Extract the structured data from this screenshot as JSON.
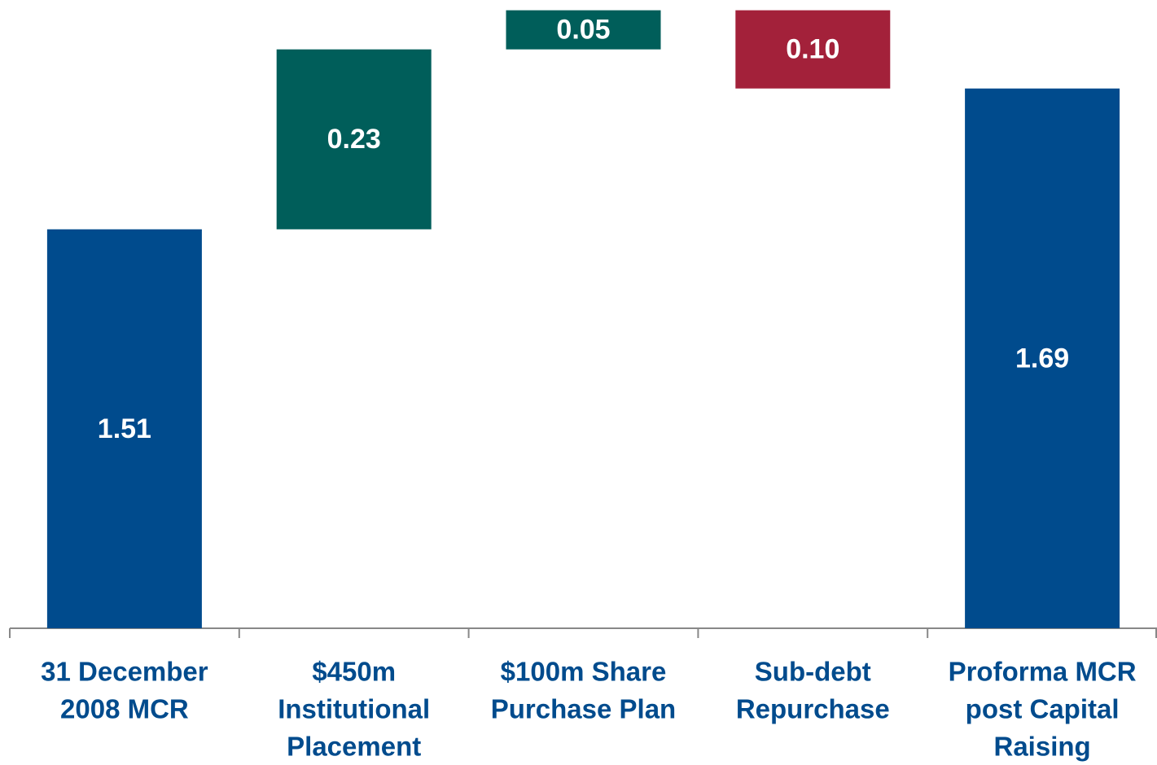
{
  "chart_data": {
    "type": "waterfall",
    "categories": [
      [
        "31 December",
        "2008 MCR"
      ],
      [
        "$450m",
        "Institutional",
        "Placement"
      ],
      [
        "$100m Share",
        "Purchase Plan"
      ],
      [
        "Sub-debt",
        "Repurchase"
      ],
      [
        "Proforma MCR",
        "post Capital",
        "Raising"
      ]
    ],
    "values": [
      1.51,
      0.23,
      0.05,
      -0.1,
      1.69
    ],
    "value_labels": [
      "1.51",
      "0.23",
      "0.05",
      "0.10",
      "1.69"
    ],
    "is_total": [
      true,
      false,
      false,
      false,
      true
    ],
    "colors": [
      "#004b8d",
      "#005e5a",
      "#005e5a",
      "#a3213a",
      "#004b8d"
    ],
    "ylim": [
      1.0,
      1.8
    ]
  }
}
